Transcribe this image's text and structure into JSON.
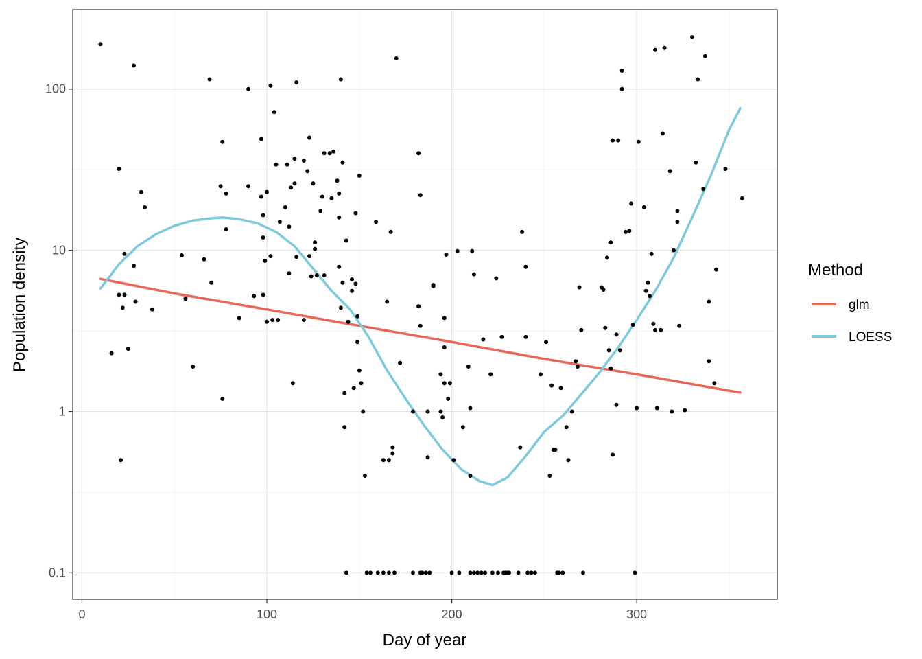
{
  "chart_data": {
    "type": "scatter",
    "xlabel": "Day of year",
    "ylabel": "Population density",
    "xlim": [
      -5,
      376
    ],
    "ylim": [
      0.0685,
      311
    ],
    "y_scale": "log10",
    "grid": true,
    "x_ticks": [
      0,
      100,
      200,
      300
    ],
    "x_tick_labels": [
      "0",
      "100",
      "200",
      "300"
    ],
    "y_ticks": [
      0.1,
      1,
      10,
      100
    ],
    "y_tick_labels": [
      "0.1",
      "1",
      "10",
      "100"
    ],
    "legend": {
      "title": "Method",
      "position": "right",
      "entries": [
        {
          "label": "glm",
          "color": "#e8675a"
        },
        {
          "label": "LOESS",
          "color": "#7ec9dc"
        }
      ]
    },
    "points_color": "#000000",
    "points": [
      [
        10,
        190
      ],
      [
        16,
        2.3
      ],
      [
        20,
        32
      ],
      [
        20,
        5.3
      ],
      [
        21,
        0.5
      ],
      [
        22,
        4.4
      ],
      [
        23,
        9.5
      ],
      [
        23,
        5.3
      ],
      [
        25,
        2.45
      ],
      [
        28,
        140
      ],
      [
        28,
        8
      ],
      [
        29,
        4.8
      ],
      [
        32,
        23
      ],
      [
        34,
        18.5
      ],
      [
        38,
        4.3
      ],
      [
        54,
        9.3
      ],
      [
        56,
        5
      ],
      [
        60,
        1.9
      ],
      [
        66,
        8.8
      ],
      [
        69,
        115
      ],
      [
        70,
        6.3
      ],
      [
        75,
        25
      ],
      [
        76,
        47
      ],
      [
        76,
        1.2
      ],
      [
        78,
        13.5
      ],
      [
        78,
        22.5
      ],
      [
        85,
        3.8
      ],
      [
        90,
        100
      ],
      [
        90,
        25
      ],
      [
        93,
        5.2
      ],
      [
        97,
        49
      ],
      [
        97,
        21.5
      ],
      [
        98,
        16.5
      ],
      [
        98,
        12
      ],
      [
        98,
        5.3
      ],
      [
        99,
        8.6
      ],
      [
        100,
        23
      ],
      [
        100,
        3.6
      ],
      [
        102,
        9.2
      ],
      [
        102,
        105
      ],
      [
        103,
        3.7
      ],
      [
        104,
        72
      ],
      [
        105,
        34
      ],
      [
        106,
        3.7
      ],
      [
        107,
        15
      ],
      [
        110,
        18.5
      ],
      [
        111,
        34
      ],
      [
        112,
        14
      ],
      [
        112,
        7.2
      ],
      [
        113,
        24.5
      ],
      [
        114,
        1.5
      ],
      [
        115,
        26
      ],
      [
        115,
        37
      ],
      [
        116,
        110
      ],
      [
        116,
        9.1
      ],
      [
        120,
        36
      ],
      [
        120,
        3.7
      ],
      [
        122,
        31
      ],
      [
        123,
        9.2
      ],
      [
        123,
        50
      ],
      [
        124,
        6.9
      ],
      [
        125,
        26
      ],
      [
        126,
        11.2
      ],
      [
        126,
        10.2
      ],
      [
        127,
        7
      ],
      [
        129,
        17.5
      ],
      [
        130,
        21.5
      ],
      [
        131,
        7
      ],
      [
        131,
        40
      ],
      [
        134,
        40
      ],
      [
        135,
        21
      ],
      [
        136,
        41
      ],
      [
        138,
        27
      ],
      [
        139,
        22.5
      ],
      [
        139,
        16
      ],
      [
        139,
        7.9
      ],
      [
        140,
        4.4
      ],
      [
        140,
        115
      ],
      [
        141,
        6.3
      ],
      [
        141,
        35
      ],
      [
        142,
        1.3
      ],
      [
        142,
        0.8
      ],
      [
        143,
        11.5
      ],
      [
        143,
        0.1
      ],
      [
        144,
        3.6
      ],
      [
        146,
        6.6
      ],
      [
        146,
        5.6
      ],
      [
        147,
        1.4
      ],
      [
        148,
        6.2
      ],
      [
        148,
        17
      ],
      [
        149,
        3.9
      ],
      [
        149,
        2.7
      ],
      [
        150,
        29
      ],
      [
        150,
        1.8
      ],
      [
        151,
        1.5
      ],
      [
        152,
        1
      ],
      [
        153,
        0.4
      ],
      [
        154,
        0.1
      ],
      [
        156,
        0.1
      ],
      [
        159,
        15
      ],
      [
        160,
        0.1
      ],
      [
        163,
        0.5
      ],
      [
        163,
        0.1
      ],
      [
        165,
        4.8
      ],
      [
        166,
        0.5
      ],
      [
        166,
        0.1
      ],
      [
        167,
        13
      ],
      [
        168,
        0.6
      ],
      [
        168,
        0.55
      ],
      [
        169,
        0.1
      ],
      [
        170,
        155
      ],
      [
        172,
        2
      ],
      [
        179,
        1
      ],
      [
        179,
        0.1
      ],
      [
        182,
        40
      ],
      [
        182,
        4.5
      ],
      [
        183,
        3.4
      ],
      [
        183,
        22
      ],
      [
        183,
        0.1
      ],
      [
        184,
        0.1
      ],
      [
        186,
        0.1
      ],
      [
        187,
        0.52
      ],
      [
        187,
        1
      ],
      [
        188,
        0.1
      ],
      [
        190,
        6.1
      ],
      [
        190,
        6
      ],
      [
        194,
        1
      ],
      [
        194,
        1.7
      ],
      [
        195,
        0.92
      ],
      [
        196,
        3.8
      ],
      [
        196,
        2.5
      ],
      [
        196,
        1.5
      ],
      [
        197,
        9.4
      ],
      [
        198,
        1.2
      ],
      [
        199,
        1.5
      ],
      [
        200,
        0.1
      ],
      [
        201,
        0.5
      ],
      [
        203,
        9.9
      ],
      [
        204,
        0.1
      ],
      [
        206,
        0.8
      ],
      [
        209,
        1.9
      ],
      [
        210,
        0.4
      ],
      [
        210,
        1.05
      ],
      [
        210,
        0.1
      ],
      [
        211,
        9.9
      ],
      [
        212,
        7.1
      ],
      [
        212,
        0.1
      ],
      [
        214,
        0.1
      ],
      [
        216,
        0.1
      ],
      [
        217,
        2.8
      ],
      [
        218,
        0.1
      ],
      [
        221,
        1.7
      ],
      [
        222,
        0.1
      ],
      [
        224,
        6.7
      ],
      [
        225,
        0.1
      ],
      [
        227,
        2.9
      ],
      [
        228,
        0.1
      ],
      [
        229,
        0.1
      ],
      [
        230,
        0.1
      ],
      [
        231,
        0.1
      ],
      [
        236,
        0.1
      ],
      [
        237,
        0.6
      ],
      [
        238,
        13
      ],
      [
        240,
        7.9
      ],
      [
        240,
        2.9
      ],
      [
        241,
        0.1
      ],
      [
        243,
        0.1
      ],
      [
        245,
        0.1
      ],
      [
        248,
        1.7
      ],
      [
        251,
        2.7
      ],
      [
        253,
        0.4
      ],
      [
        254,
        1.45
      ],
      [
        255,
        0.58
      ],
      [
        256,
        0.58
      ],
      [
        257,
        0.1
      ],
      [
        258,
        0.1
      ],
      [
        259,
        1.4
      ],
      [
        260,
        0.1
      ],
      [
        262,
        0.8
      ],
      [
        263,
        0.5
      ],
      [
        265,
        1
      ],
      [
        267,
        2.05
      ],
      [
        268,
        1.9
      ],
      [
        269,
        5.9
      ],
      [
        270,
        3.2
      ],
      [
        271,
        0.1
      ],
      [
        281,
        5.9
      ],
      [
        282,
        5.7
      ],
      [
        283,
        3.3
      ],
      [
        284,
        9
      ],
      [
        285,
        2.4
      ],
      [
        286,
        11.2
      ],
      [
        286,
        1.85
      ],
      [
        287,
        0.54
      ],
      [
        287,
        48
      ],
      [
        289,
        1.1
      ],
      [
        289,
        3
      ],
      [
        290,
        48
      ],
      [
        291,
        2.4
      ],
      [
        292,
        130
      ],
      [
        292,
        100
      ],
      [
        294,
        13
      ],
      [
        296,
        13.2
      ],
      [
        297,
        19.5
      ],
      [
        298,
        3.45
      ],
      [
        299,
        0.1
      ],
      [
        300,
        1.05
      ],
      [
        301,
        47
      ],
      [
        304,
        18.5
      ],
      [
        305,
        5.6
      ],
      [
        306,
        6.3
      ],
      [
        307,
        5.2
      ],
      [
        308,
        9.5
      ],
      [
        309,
        3.5
      ],
      [
        310,
        3.2
      ],
      [
        310,
        175
      ],
      [
        311,
        1.05
      ],
      [
        313,
        3.2
      ],
      [
        314,
        53
      ],
      [
        315,
        180
      ],
      [
        318,
        31
      ],
      [
        319,
        1
      ],
      [
        320,
        10
      ],
      [
        322,
        15
      ],
      [
        322,
        17.5
      ],
      [
        323,
        3.4
      ],
      [
        326,
        1.02
      ],
      [
        330,
        210
      ],
      [
        332,
        35
      ],
      [
        333,
        115
      ],
      [
        336,
        24
      ],
      [
        337,
        160
      ],
      [
        339,
        4.8
      ],
      [
        339,
        2.05
      ],
      [
        342,
        1.5
      ],
      [
        343,
        7.6
      ],
      [
        348,
        32
      ],
      [
        357,
        21
      ]
    ],
    "series": [
      {
        "name": "glm",
        "color": "#e8675a",
        "x": [
          10,
          50,
          100,
          150,
          200,
          250,
          300,
          356
        ],
        "y": [
          6.65,
          5.4,
          4.3,
          3.4,
          2.7,
          2.12,
          1.7,
          1.31
        ]
      },
      {
        "name": "LOESS",
        "color": "#7ec9dc",
        "x": [
          10,
          20,
          30,
          40,
          50,
          60,
          70,
          76,
          85,
          95,
          105,
          115,
          125,
          135,
          145,
          155,
          165,
          175,
          185,
          195,
          205,
          215,
          222,
          230,
          240,
          250,
          260,
          270,
          280,
          290,
          300,
          310,
          320,
          330,
          340,
          350,
          356
        ],
        "y": [
          5.8,
          8.2,
          10.6,
          12.6,
          14.2,
          15.3,
          15.8,
          16,
          15.6,
          14.7,
          13.0,
          10.6,
          7.7,
          5.6,
          4.3,
          2.9,
          1.8,
          1.2,
          0.82,
          0.58,
          0.44,
          0.37,
          0.35,
          0.39,
          0.53,
          0.75,
          0.94,
          1.28,
          1.75,
          2.5,
          3.7,
          5.6,
          9.0,
          16,
          29,
          56,
          76
        ]
      }
    ]
  }
}
